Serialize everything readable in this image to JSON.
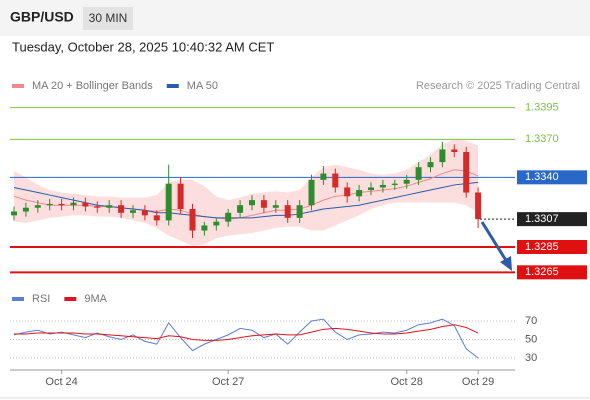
{
  "header": {
    "symbol": "GBP/USD",
    "interval": "30 MIN",
    "timestamp": "Tuesday, October 28, 2025 10:40:32 AM CET",
    "credit": "Research © 2025 Trading Central"
  },
  "chart_data": [
    {
      "type": "candlestick",
      "categories": [
        null,
        null,
        null,
        null,
        "Oct 24",
        null,
        null,
        null,
        null,
        null,
        null,
        null,
        null,
        null,
        null,
        null,
        null,
        null,
        "Oct 27",
        null,
        null,
        null,
        null,
        null,
        null,
        null,
        null,
        null,
        null,
        null,
        null,
        null,
        null,
        "Oct 28",
        null,
        null,
        null,
        null,
        null,
        "Oct 29"
      ],
      "open": [
        1.331,
        1.3313,
        1.3316,
        1.3318,
        1.3319,
        1.3318,
        1.332,
        1.3317,
        1.3316,
        1.3318,
        1.3312,
        1.3314,
        1.331,
        1.3306,
        1.3335,
        1.3315,
        1.3298,
        1.3302,
        1.3305,
        1.3312,
        1.3318,
        1.3322,
        1.3316,
        1.3318,
        1.3308,
        1.3318,
        1.3338,
        1.3343,
        1.3332,
        1.3325,
        1.333,
        1.3332,
        1.3334,
        1.3335,
        1.3338,
        1.3348,
        1.3352,
        1.3362,
        1.336,
        1.3328
      ],
      "high": [
        1.3317,
        1.332,
        1.3322,
        1.3323,
        1.3323,
        1.3324,
        1.3324,
        1.3321,
        1.3322,
        1.3322,
        1.3318,
        1.3318,
        1.3314,
        1.335,
        1.334,
        1.3319,
        1.3305,
        1.3308,
        1.3315,
        1.3322,
        1.3326,
        1.3326,
        1.3322,
        1.3322,
        1.3322,
        1.3342,
        1.3349,
        1.3347,
        1.3336,
        1.3334,
        1.3336,
        1.3338,
        1.3338,
        1.3342,
        1.3352,
        1.3356,
        1.3368,
        1.3366,
        1.3364,
        1.3332
      ],
      "low": [
        1.3306,
        1.3309,
        1.3312,
        1.3314,
        1.3314,
        1.3314,
        1.3313,
        1.3312,
        1.3312,
        1.3308,
        1.3308,
        1.3306,
        1.3302,
        1.3302,
        1.3311,
        1.3292,
        1.3294,
        1.3298,
        1.3301,
        1.3308,
        1.3314,
        1.3312,
        1.3312,
        1.3304,
        1.3304,
        1.3314,
        1.3334,
        1.3328,
        1.332,
        1.3321,
        1.3326,
        1.3328,
        1.333,
        1.3331,
        1.3334,
        1.3344,
        1.3348,
        1.3356,
        1.3324,
        1.33
      ],
      "close": [
        1.3313,
        1.3316,
        1.3318,
        1.3319,
        1.3318,
        1.332,
        1.3317,
        1.3316,
        1.3318,
        1.3312,
        1.3314,
        1.331,
        1.3306,
        1.3335,
        1.3315,
        1.3298,
        1.3302,
        1.3305,
        1.3312,
        1.3318,
        1.3322,
        1.3316,
        1.3318,
        1.3308,
        1.3318,
        1.3338,
        1.3343,
        1.3332,
        1.3325,
        1.333,
        1.3332,
        1.3334,
        1.3335,
        1.3338,
        1.3348,
        1.3352,
        1.3362,
        1.336,
        1.3328,
        1.3307
      ],
      "up_color": "#2e8b2e",
      "down_color": "#d42a2a",
      "bands": {
        "color": "#fbd6d6",
        "upper": [
          1.3345,
          1.334,
          1.3334,
          1.333,
          1.3328,
          1.3327,
          1.3326,
          1.3325,
          1.3325,
          1.3324,
          1.3324,
          1.3324,
          1.3326,
          1.3336,
          1.3338,
          1.3338,
          1.3333,
          1.3325,
          1.3322,
          1.3324,
          1.3327,
          1.3328,
          1.3329,
          1.3328,
          1.333,
          1.334,
          1.3348,
          1.335,
          1.3348,
          1.3346,
          1.3343,
          1.3342,
          1.3343,
          1.3346,
          1.3352,
          1.3358,
          1.3366,
          1.337,
          1.3369,
          1.3365
        ],
        "lower": [
          1.3305,
          1.3304,
          1.3306,
          1.3308,
          1.3309,
          1.331,
          1.331,
          1.3309,
          1.3309,
          1.3308,
          1.3306,
          1.3304,
          1.33,
          1.3294,
          1.329,
          1.3286,
          1.3287,
          1.3292,
          1.3294,
          1.3295,
          1.3296,
          1.3298,
          1.33,
          1.3301,
          1.3301,
          1.3298,
          1.3298,
          1.3302,
          1.3306,
          1.331,
          1.3315,
          1.3318,
          1.332,
          1.332,
          1.332,
          1.332,
          1.332,
          1.332,
          1.3318,
          1.3312
        ]
      },
      "series": [
        {
          "name": "MA 20 + Bollinger Bands",
          "color": "#f08a8a",
          "values": [
            1.3325,
            1.3322,
            1.332,
            1.3318,
            1.3318,
            1.3318,
            1.3318,
            1.3317,
            1.3317,
            1.3316,
            1.3315,
            1.3314,
            1.3313,
            1.3315,
            1.3314,
            1.3311,
            1.3309,
            1.3308,
            1.3307,
            1.3308,
            1.331,
            1.3312,
            1.3314,
            1.3314,
            1.3315,
            1.3318,
            1.3322,
            1.3325,
            1.3326,
            1.3328,
            1.3329,
            1.333,
            1.3331,
            1.3333,
            1.3336,
            1.3339,
            1.3343,
            1.3346,
            1.3345,
            1.3341
          ]
        },
        {
          "name": "MA 50",
          "color": "#2a5ca8",
          "values": [
            1.3332,
            1.333,
            1.3328,
            1.3326,
            1.3324,
            1.3322,
            1.332,
            1.3318,
            1.3317,
            1.3316,
            1.3315,
            1.3314,
            1.3312,
            1.3312,
            1.3311,
            1.331,
            1.3309,
            1.3308,
            1.3308,
            1.3308,
            1.3308,
            1.3309,
            1.331,
            1.331,
            1.3311,
            1.3313,
            1.3315,
            1.3316,
            1.3317,
            1.3318,
            1.332,
            1.3322,
            1.3324,
            1.3326,
            1.3328,
            1.333,
            1.3332,
            1.3334,
            1.3335,
            1.3336
          ]
        }
      ],
      "ylim": [
        1.3255,
        1.3405
      ],
      "levels": [
        {
          "value": 1.3395,
          "color": "#7cbf4a",
          "line": "thin",
          "box": false
        },
        {
          "value": 1.337,
          "label": "1.3370",
          "color": "#7cbf4a",
          "line": "thin",
          "box": false
        },
        {
          "value": 1.334,
          "label": "1.3340",
          "color": "#2a68c8",
          "line": "thin",
          "box": true
        },
        {
          "value": 1.3307,
          "color": "#222222",
          "line": "dotted",
          "box": true
        },
        {
          "value": 1.3285,
          "color": "#e01010",
          "line": "thick",
          "box": true
        },
        {
          "value": 1.3265,
          "color": "#e01010",
          "line": "thick",
          "box": true
        }
      ]
    },
    {
      "type": "line",
      "series": [
        {
          "name": "RSI",
          "color": "#5b7fd6",
          "values": [
            55,
            58,
            60,
            56,
            58,
            55,
            52,
            57,
            53,
            50,
            55,
            48,
            45,
            68,
            52,
            38,
            45,
            50,
            55,
            62,
            60,
            52,
            56,
            45,
            58,
            70,
            72,
            58,
            50,
            55,
            56,
            58,
            57,
            60,
            66,
            68,
            72,
            65,
            40,
            30
          ]
        },
        {
          "name": "9MA",
          "color": "#e0141e",
          "values": [
            56,
            56,
            57,
            57,
            57,
            57,
            56,
            56,
            55,
            54,
            53,
            52,
            51,
            54,
            53,
            50,
            49,
            49,
            50,
            52,
            54,
            55,
            56,
            55,
            55,
            58,
            61,
            62,
            61,
            59,
            57,
            56,
            56,
            57,
            59,
            61,
            64,
            66,
            63,
            57
          ]
        }
      ],
      "ylim": [
        20,
        80
      ],
      "yticks": [
        30,
        50,
        70
      ]
    }
  ]
}
